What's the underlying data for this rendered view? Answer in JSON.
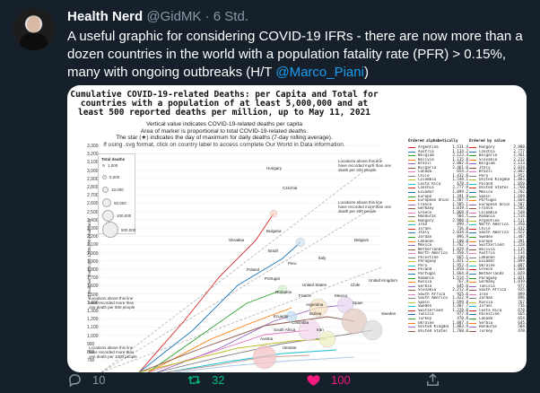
{
  "tweet": {
    "name": "Health Nerd",
    "handle": "@GidMK",
    "time": "6 Std.",
    "text_main": "A useful graphic for considering COVID-19 IFRs - there are now more than a dozen countries in the world with a population fatality rate (PFR) > 0.15%, many with ongoing outbreaks (H/T ",
    "mention": "@Marco_Piani",
    "text_end": ")"
  },
  "media": {
    "title": "Cumulative COVID-19-related Deaths: per Capita and Total for countries with a population of at least 5,000,000 and at least 500 reported deaths per million, up to May 11, 2021",
    "subtitle": "Vertical value indicates COVID-19-related deaths per capita\nArea of marker is proportional to total COVID-19-related deaths.\nThe star (★) indicates the day of maximum for daily deaths (7-day rolling average).\nIf using .svg format, click on country label to access complete Our World in Data information.",
    "y_axis_label": "Cumulative deaths per 1,000,000 inhabitants",
    "y_ticks": [
      "3,300",
      "3,200",
      "3,100",
      "3,000",
      "2,900",
      "2,800",
      "2,700",
      "2,600",
      "2,500",
      "2,400",
      "2,300",
      "2,200",
      "2,100",
      "2,000",
      "1,900",
      "1,800",
      "1,700",
      "1,600",
      "1,500",
      "1,400",
      "1,300",
      "1,200",
      "1,100",
      "1,000",
      "900",
      "800",
      "700"
    ],
    "legend_title": "Total deaths",
    "legend_items": [
      "1,000",
      "5,000",
      "10,000",
      "50,000",
      "100,000",
      "500,000"
    ],
    "note_top": "Locations above this line have recorded more than one death per 333 people",
    "note_mid": "Locations above this line have recorded more than one death per 400 people",
    "note_bottom_left": "Locations above this line have recorded more than one death per 500 people",
    "note_bottom_left2": "Locations above this line have recorded more than one death per 1000 people",
    "country_labels": [
      "Hungary",
      "Czechia",
      "Bulgaria",
      "Slovakia",
      "Belgium",
      "Brazil",
      "Italy",
      "Peru",
      "Poland",
      "Portugal",
      "United States",
      "Romania",
      "Spain",
      "United Kingdom",
      "France",
      "Mexico",
      "Argentina",
      "Chile",
      "Sweden",
      "Bolivia",
      "Ecuador",
      "Colombia",
      "Iran",
      "South Africa",
      "Austria",
      "Ukraine"
    ]
  },
  "right_panel": {
    "header_alpha": "Ordered alphabetically",
    "header_value": "Ordered by value",
    "alpha": [
      [
        "Argentina",
        "1,511.4"
      ],
      [
        "Austria",
        "1,134.2"
      ],
      [
        "Belgium",
        "2,123.4"
      ],
      [
        "Bolivia",
        "1,135.8"
      ],
      [
        "Brazil",
        "2,002.6"
      ],
      [
        "Bulgaria",
        "2,461.6"
      ],
      [
        "Canada",
        "654.3"
      ],
      [
        "Chile",
        "1,432.8"
      ],
      [
        "Colombia",
        "1,548.1"
      ],
      [
        "Costa Rica",
        "678.4"
      ],
      [
        "Czechia",
        "2,777.9"
      ],
      [
        "Ecuador",
        "1,099.2"
      ],
      [
        "Europe",
        "1,391.9"
      ],
      [
        "European Union",
        "1,587.5"
      ],
      [
        "France",
        "1,585.1"
      ],
      [
        "Germany",
        "1,019.1"
      ],
      [
        "Greece",
        "1,068.9"
      ],
      [
        "Honduras",
        "504.5"
      ],
      [
        "Hungary",
        "2,980.4"
      ],
      [
        "Iran",
        "899.7"
      ],
      [
        "Israel",
        "736.8"
      ],
      [
        "Italy",
        "2,034.6"
      ],
      [
        "Jordan",
        "896.9"
      ],
      [
        "Lebanon",
        "1,100.0"
      ],
      [
        "Mexico",
        "1,702.7"
      ],
      [
        "Netherlands",
        "1,029.9"
      ],
      [
        "North America",
        "1,450.5"
      ],
      [
        "Palestine",
        "665.1"
      ],
      [
        "Paraguay",
        "1,021.2"
      ],
      [
        "Peru",
        "1,952.4"
      ],
      [
        "Poland",
        "1,850.2"
      ],
      [
        "Portugal",
        "1,664.8"
      ],
      [
        "Romania",
        "1,514.5"
      ],
      [
        "Russia",
        "767.9"
      ],
      [
        "Serbia",
        "645.6"
      ],
      [
        "Slovakia",
        "2,212.8"
      ],
      [
        "South Africa",
        "925.6"
      ],
      [
        "South America",
        "1,422.9"
      ],
      [
        "Spain",
        "1,699.8"
      ],
      [
        "Sweden",
        "1,407.7"
      ],
      [
        "Switzerland",
        "1,228.0"
      ],
      [
        "Tunisia",
        "977.8"
      ],
      [
        "Turkey",
        "470.8"
      ],
      [
        "Ukraine",
        "1,087.4"
      ],
      [
        "United Kingdom",
        "1,883.9"
      ],
      [
        "United States",
        "1,760.0"
      ]
    ],
    "by_value": [
      [
        "Hungary",
        "2,980.4"
      ],
      [
        "Czechia",
        "2,777.9"
      ],
      [
        "Bulgaria",
        "2,461.6"
      ],
      [
        "Slovakia",
        "2,212.8"
      ],
      [
        "Belgium",
        "2,123.4"
      ],
      [
        "Italy",
        "2,034.6"
      ],
      [
        "Brazil",
        "2,002.6"
      ],
      [
        "Peru",
        "1,952.4"
      ],
      [
        "United Kingdom",
        "1,883.9"
      ],
      [
        "Poland",
        "1,850.2"
      ],
      [
        "United States",
        "1,760.0"
      ],
      [
        "Mexico",
        "1,702.7"
      ],
      [
        "Spain",
        "1,699.8"
      ],
      [
        "Portugal",
        "1,664.8"
      ],
      [
        "European Union",
        "1,587.5"
      ],
      [
        "France",
        "1,585.1"
      ],
      [
        "Colombia",
        "1,548.1"
      ],
      [
        "Romania",
        "1,514.5"
      ],
      [
        "Argentina",
        "1,511.4"
      ],
      [
        "North America",
        "1,450.5"
      ],
      [
        "Chile",
        "1,432.8"
      ],
      [
        "South America",
        "1,422.9"
      ],
      [
        "Sweden",
        "1,407.7"
      ],
      [
        "Europe",
        "1,391.9"
      ],
      [
        "Switzerland",
        "1,228.0"
      ],
      [
        "Bolivia",
        "1,135.8"
      ],
      [
        "Austria",
        "1,134.2"
      ],
      [
        "Lebanon",
        "1,100.0"
      ],
      [
        "Ecuador",
        "1,099.2"
      ],
      [
        "Ukraine",
        "1,087.4"
      ],
      [
        "Greece",
        "1,068.9"
      ],
      [
        "Netherlands",
        "1,029.9"
      ],
      [
        "Paraguay",
        "1,021.2"
      ],
      [
        "Germany",
        "1,019.1"
      ],
      [
        "Tunisia",
        "977.8"
      ],
      [
        "South Africa",
        "925.6"
      ],
      [
        "Iran",
        "899.7"
      ],
      [
        "Jordan",
        "896.9"
      ],
      [
        "Russia",
        "767.9"
      ],
      [
        "Israel",
        "736.8"
      ],
      [
        "Costa Rica",
        "678.4"
      ],
      [
        "Palestine",
        "665.1"
      ],
      [
        "Canada",
        "654.3"
      ],
      [
        "Serbia",
        "645.6"
      ],
      [
        "Honduras",
        "504.5"
      ],
      [
        "Turkey",
        "470.8"
      ]
    ]
  },
  "actions": {
    "reply_count": "10",
    "retweet_count": "32",
    "like_count": "100"
  },
  "colors": {
    "background": "#15202b",
    "mention": "#1d9bf0",
    "reply": "#8899a6",
    "retweet": "#00ba7c",
    "like": "#f91880"
  }
}
